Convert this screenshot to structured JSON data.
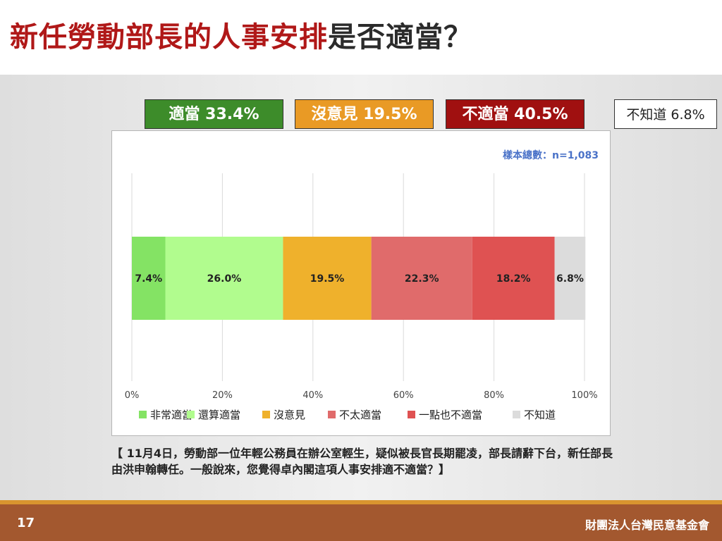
{
  "title": {
    "red_part": "新任勞動部長的人事安排",
    "dark_part": "是否適當？"
  },
  "summary": [
    {
      "label": "適當 33.4%",
      "bg": "#3d8c2a",
      "fg": "#ffffff"
    },
    {
      "label": "沒意見 19.5%",
      "bg": "#e99a25",
      "fg": "#ffffff"
    },
    {
      "label": "不適當 40.5%",
      "bg": "#a01010",
      "fg": "#ffffff"
    },
    {
      "label": "不知道 6.8%",
      "bg": "#ffffff",
      "fg": "#222222"
    }
  ],
  "sample_note": "樣本總數：n=1,083",
  "chart_data": {
    "type": "bar",
    "orientation": "horizontal-stacked",
    "categories": [
      "新任勞動部長的人事安排"
    ],
    "series": [
      {
        "name": "非常適當",
        "values": [
          7.4
        ],
        "color": "#84e364"
      },
      {
        "name": "還算適當",
        "values": [
          26.0
        ],
        "color": "#b1fc8e"
      },
      {
        "name": "沒意見",
        "values": [
          19.5
        ],
        "color": "#efb12c"
      },
      {
        "name": "不太適當",
        "values": [
          22.3
        ],
        "color": "#e06b6b"
      },
      {
        "name": "一點也不適當",
        "values": [
          18.2
        ],
        "color": "#df5252"
      },
      {
        "name": "不知道",
        "values": [
          6.8
        ],
        "color": "#dcdcdc"
      }
    ],
    "data_labels": [
      "7.4%",
      "26.0%",
      "19.5%",
      "22.3%",
      "18.2%",
      "6.8%"
    ],
    "xlim": [
      0,
      100
    ],
    "x_ticks": [
      "0%",
      "20%",
      "40%",
      "60%",
      "80%",
      "100%"
    ],
    "grid": true,
    "legend_position": "bottom"
  },
  "question": "【 11月4日，勞動部一位年輕公務員在辦公室輕生，疑似被長官長期罷凌，部長請辭下台，新任部長由洪申翰轉任。一般說來，您覺得卓內閣這項人事安排適不適當？】",
  "footer": {
    "page_number": "17",
    "org": "財團法人台灣民意基金會"
  }
}
